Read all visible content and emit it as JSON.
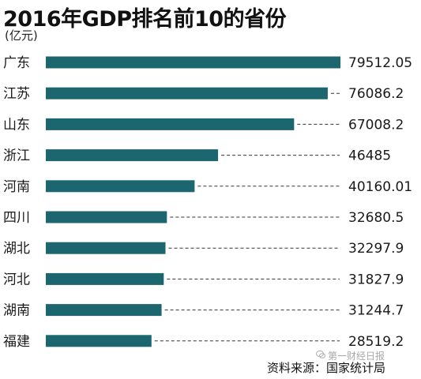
{
  "chart_data": {
    "type": "bar",
    "orientation": "horizontal",
    "title": "2016年GDP排名前10的省份",
    "unit_label": "(亿元)",
    "categories": [
      "广东",
      "江苏",
      "山东",
      "浙江",
      "河南",
      "四川",
      "湖北",
      "河北",
      "湖南",
      "福建"
    ],
    "values": [
      79512.05,
      76086.2,
      67008.2,
      46485,
      40160.01,
      32680.5,
      32297.9,
      31827.9,
      31244.7,
      28519.2
    ],
    "value_labels": [
      "79512.05",
      "76086.2",
      "67008.2",
      "46485",
      "40160.01",
      "32680.5",
      "32297.9",
      "31827.9",
      "31244.7",
      "28519.2"
    ],
    "xlim": [
      0,
      79512.05
    ],
    "bar_color": "#1c6670",
    "grid": false,
    "leader_lines": "dashed"
  },
  "source_text": "资料来源：国家统计局",
  "watermark_text": "第一财经日报"
}
